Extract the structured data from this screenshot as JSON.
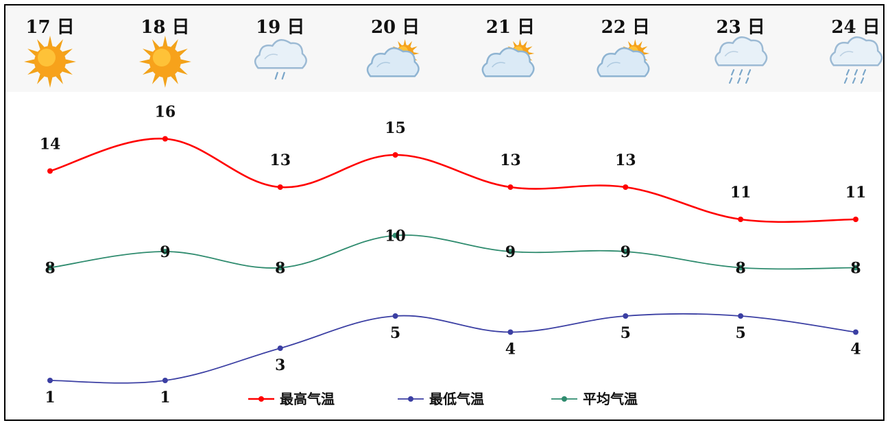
{
  "chart_data": {
    "type": "line",
    "categories": [
      "17 日",
      "18 日",
      "19 日",
      "20 日",
      "21 日",
      "22 日",
      "23 日",
      "24 日"
    ],
    "weather_icons": [
      "sun-icon",
      "sun-icon",
      "cloud-light-rain-icon",
      "partly-cloudy-icon",
      "partly-cloudy-icon",
      "partly-cloudy-icon",
      "cloud-rain-icon",
      "cloud-rain-icon"
    ],
    "series": [
      {
        "name": "最高气温",
        "color": "#ff0000",
        "values": [
          14,
          16,
          13,
          15,
          13,
          13,
          11,
          11
        ]
      },
      {
        "name": "最低气温",
        "color": "#3b3fa3",
        "values": [
          1,
          1,
          3,
          5,
          4,
          5,
          5,
          4
        ]
      },
      {
        "name": "平均气温",
        "color": "#2e8b6e",
        "values": [
          8,
          9,
          8,
          10,
          9,
          9,
          8,
          8
        ]
      }
    ],
    "ylim": [
      1,
      16
    ],
    "grid": false,
    "legend_position": "bottom-center"
  }
}
